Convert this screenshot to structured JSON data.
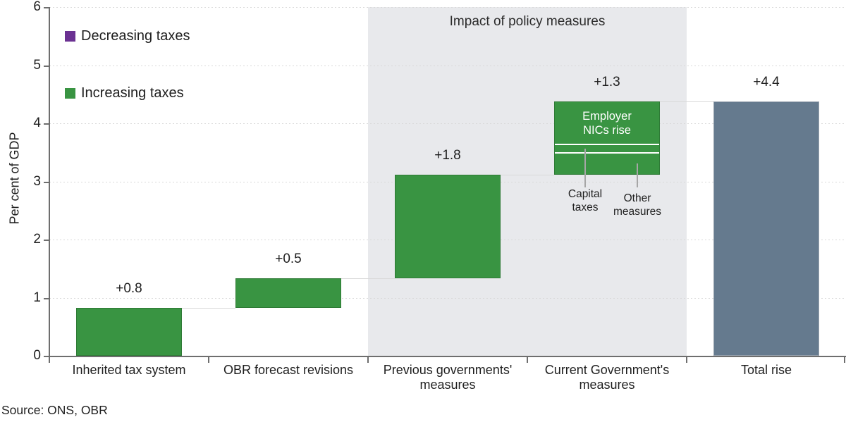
{
  "source_note": "Source: ONS, OBR",
  "legend": [
    {
      "label": "Decreasing taxes",
      "color": "#6b3192",
      "swatch_icon": "square-swatch"
    },
    {
      "label": "Increasing taxes",
      "color": "#399442",
      "swatch_icon": "square-swatch"
    }
  ],
  "chart_data": {
    "type": "bar",
    "subtype": "waterfall",
    "title": "",
    "xlabel": "",
    "ylabel": "Per cent of GDP",
    "ylim": [
      0,
      6
    ],
    "yticks": [
      0,
      1,
      2,
      3,
      4,
      5,
      6
    ],
    "grid": "horizontal-dotted",
    "legend_position": "top-left-inside",
    "categories": [
      "Inherited tax system",
      "OBR forecast revisions",
      "Previous governments' measures",
      "Current Government's measures",
      "Total rise"
    ],
    "band": {
      "label": "Impact of policy measures",
      "from_category_index": 2,
      "to_category_index": 3
    },
    "bars": [
      {
        "category": "Inherited tax system",
        "value_label": "+0.8",
        "start": 0,
        "end": 0.83,
        "role": "increase"
      },
      {
        "category": "OBR forecast revisions",
        "value_label": "+0.5",
        "start": 0.83,
        "end": 1.33,
        "role": "increase"
      },
      {
        "category": "Previous governments' measures",
        "value_label": "+1.8",
        "start": 1.33,
        "end": 3.12,
        "role": "increase"
      },
      {
        "category": "Current Government's measures",
        "value_label": "+1.3",
        "start": 3.12,
        "end": 4.37,
        "role": "increase",
        "segments": [
          {
            "name": "Other measures",
            "label_lines": [
              "Other",
              "measures"
            ],
            "start": 3.12,
            "end": 3.49,
            "label_position": "below-right"
          },
          {
            "name": "Capital taxes",
            "label_lines": [
              "Capital",
              "taxes"
            ],
            "start": 3.49,
            "end": 3.64,
            "label_position": "below-left"
          },
          {
            "name": "Employer NICs rise",
            "label_lines": [
              "Employer",
              "NICs rise"
            ],
            "start": 3.64,
            "end": 4.37,
            "label_position": "inside"
          }
        ]
      },
      {
        "category": "Total rise",
        "value_label": "+4.4",
        "start": 0,
        "end": 4.37,
        "role": "total"
      }
    ],
    "colors": {
      "increase": "#399442",
      "increase_border": "#2e7a35",
      "decrease": "#6b3192",
      "total": "#657a8e",
      "total_border": "#98a3af",
      "band_fill": "#e8e9ec",
      "gridline": "#d9d9d9",
      "connector": "#d9d9d9",
      "axis": "#6e6e6e",
      "leader_line": "#a6a6a6",
      "segment_divider": "#ffffff",
      "text": "#1f1f1f"
    }
  }
}
